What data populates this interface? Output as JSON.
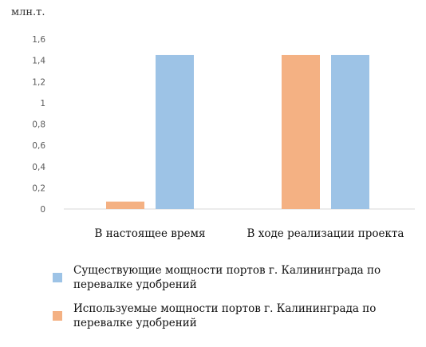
{
  "chart_data": {
    "type": "bar",
    "y_unit": "млн.т.",
    "categories": [
      "В настоящее время",
      "В ходе реализации проекта"
    ],
    "series": [
      {
        "name": "Используемые мощности портов г. Калининграда по перевалке удобрений",
        "color": "#F4B183",
        "values": [
          0.07,
          1.45
        ]
      },
      {
        "name": "Существующие мощности портов г. Калининграда по перевалке удобрений",
        "color": "#9DC3E6",
        "values": [
          1.45,
          1.45
        ]
      }
    ],
    "ylim": [
      0,
      1.6
    ],
    "yticks": [
      "0",
      "0,2",
      "0,4",
      "0,6",
      "0,8",
      "1",
      "1,2",
      "1,4",
      "1,6"
    ],
    "grid": false,
    "legend": {
      "position": "bottom",
      "order": [
        1,
        0
      ]
    }
  }
}
